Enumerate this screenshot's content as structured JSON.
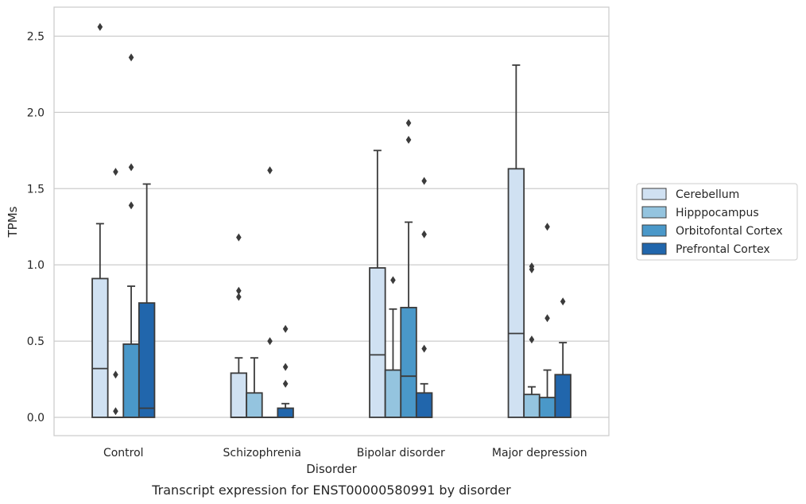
{
  "caption": "Transcript expression for ENST00000580991 by disorder",
  "chart_data": {
    "type": "box",
    "xlabel": "Disorder",
    "ylabel": "TPMs",
    "ylim": [
      -0.12,
      2.69
    ],
    "yticks": [
      0.0,
      0.5,
      1.0,
      1.5,
      2.0,
      2.5
    ],
    "ytick_labels": [
      "0.0",
      "0.5",
      "1.0",
      "1.5",
      "2.0",
      "2.5"
    ],
    "grid": "horizontal",
    "legend_position": "right",
    "categories": [
      "Control",
      "Schizophrenia",
      "Bipolar disorder",
      "Major depression"
    ],
    "series": [
      {
        "name": "Cerebellum",
        "color": "#d0e1f2",
        "boxes": [
          {
            "q1": 0.0,
            "median": 0.32,
            "q3": 0.91,
            "whisker_low": 0.0,
            "whisker_high": 1.27,
            "outliers": [
              2.56
            ]
          },
          {
            "q1": 0.0,
            "median": 0.0,
            "q3": 0.29,
            "whisker_low": 0.0,
            "whisker_high": 0.39,
            "outliers": [
              0.79,
              0.83,
              1.18
            ]
          },
          {
            "q1": 0.0,
            "median": 0.41,
            "q3": 0.98,
            "whisker_low": 0.0,
            "whisker_high": 1.75,
            "outliers": []
          },
          {
            "q1": 0.0,
            "median": 0.55,
            "q3": 1.63,
            "whisker_low": 0.0,
            "whisker_high": 2.31,
            "outliers": []
          }
        ]
      },
      {
        "name": "Hipppocampus",
        "color": "#94c4df",
        "boxes": [
          {
            "q1": 0.0,
            "median": 0.0,
            "q3": 0.0,
            "whisker_low": 0.0,
            "whisker_high": 0.0,
            "outliers": [
              0.04,
              0.28,
              1.61
            ]
          },
          {
            "q1": 0.0,
            "median": 0.0,
            "q3": 0.16,
            "whisker_low": 0.0,
            "whisker_high": 0.39,
            "outliers": []
          },
          {
            "q1": 0.0,
            "median": 0.0,
            "q3": 0.31,
            "whisker_low": 0.0,
            "whisker_high": 0.71,
            "outliers": [
              0.9
            ]
          },
          {
            "q1": 0.0,
            "median": 0.0,
            "q3": 0.15,
            "whisker_low": 0.0,
            "whisker_high": 0.2,
            "outliers": [
              0.51,
              0.97,
              0.99
            ]
          }
        ]
      },
      {
        "name": "Orbitofontal Cortex",
        "color": "#4a98c9",
        "boxes": [
          {
            "q1": 0.0,
            "median": 0.0,
            "q3": 0.48,
            "whisker_low": 0.0,
            "whisker_high": 0.86,
            "outliers": [
              1.39,
              1.64,
              2.36
            ]
          },
          {
            "q1": 0.0,
            "median": 0.0,
            "q3": 0.0,
            "whisker_low": 0.0,
            "whisker_high": 0.0,
            "outliers": [
              0.5,
              1.62
            ]
          },
          {
            "q1": 0.0,
            "median": 0.27,
            "q3": 0.72,
            "whisker_low": 0.0,
            "whisker_high": 1.28,
            "outliers": [
              1.82,
              1.93
            ]
          },
          {
            "q1": 0.0,
            "median": 0.0,
            "q3": 0.13,
            "whisker_low": 0.0,
            "whisker_high": 0.31,
            "outliers": [
              0.65,
              1.25
            ]
          }
        ]
      },
      {
        "name": "Prefrontal Cortex",
        "color": "#2166ac",
        "boxes": [
          {
            "q1": 0.0,
            "median": 0.06,
            "q3": 0.75,
            "whisker_low": 0.0,
            "whisker_high": 1.53,
            "outliers": []
          },
          {
            "q1": 0.0,
            "median": 0.0,
            "q3": 0.06,
            "whisker_low": 0.0,
            "whisker_high": 0.09,
            "outliers": [
              0.22,
              0.33,
              0.58
            ]
          },
          {
            "q1": 0.0,
            "median": 0.0,
            "q3": 0.16,
            "whisker_low": 0.0,
            "whisker_high": 0.22,
            "outliers": [
              0.45,
              1.2,
              1.55
            ]
          },
          {
            "q1": 0.0,
            "median": 0.0,
            "q3": 0.28,
            "whisker_low": 0.0,
            "whisker_high": 0.49,
            "outliers": [
              0.76
            ]
          }
        ]
      }
    ]
  }
}
